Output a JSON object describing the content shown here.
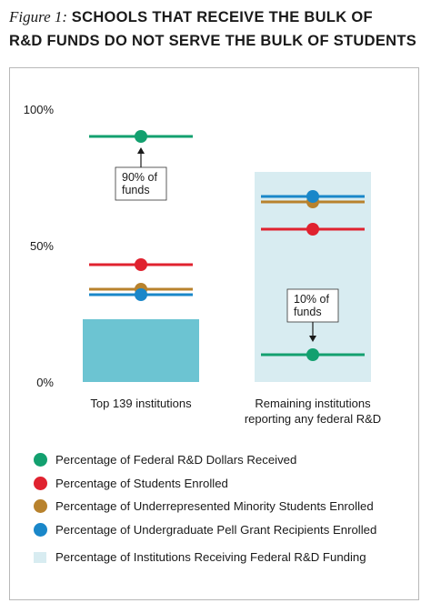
{
  "figure": {
    "label": "Figure 1:",
    "title_line1": "SCHOOLS THAT RECEIVE THE BULK OF",
    "title_line2": "R&D FUNDS DO NOT SERVE THE BULK OF STUDENTS"
  },
  "colors": {
    "green": "#13a06f",
    "red": "#e0222f",
    "gold": "#b8822d",
    "blue": "#1a87c9",
    "bar_fill": "#6cc4d2",
    "bar_light": "#d8ecf1",
    "axis_text": "#1a1a1a"
  },
  "chart_data": {
    "type": "dot-and-bar",
    "ylim": [
      0,
      100
    ],
    "ytick_labels": [
      "100%",
      "50%",
      "0%"
    ],
    "yticks": [
      100,
      50,
      0
    ],
    "categories": [
      "Top 139 institutions",
      "Remaining institutions reporting any federal R&D"
    ],
    "category_labels": [
      [
        "Top 139 institutions"
      ],
      [
        "Remaining institutions",
        "reporting any federal R&D"
      ]
    ],
    "bar_series": {
      "name": "Percentage of Institutions Receiving Federal R&D Funding",
      "values": [
        23,
        77
      ]
    },
    "dot_series": [
      {
        "name": "Percentage of Federal R&D Dollars Received",
        "color_key": "green",
        "values": [
          90,
          10
        ]
      },
      {
        "name": "Percentage of Students Enrolled",
        "color_key": "red",
        "values": [
          43,
          56
        ]
      },
      {
        "name": "Percentage of Underrepresented Minority Students Enrolled",
        "color_key": "gold",
        "values": [
          34,
          66
        ]
      },
      {
        "name": "Percentage of Undergraduate Pell Grant Recipients Enrolled",
        "color_key": "blue",
        "values": [
          32,
          68
        ]
      }
    ],
    "annotations": [
      {
        "category_index": 0,
        "lines": [
          "90% of",
          "funds"
        ],
        "arrow": "up"
      },
      {
        "category_index": 1,
        "lines": [
          "10% of",
          "funds"
        ],
        "arrow": "down"
      }
    ]
  },
  "legend": {
    "items": [
      {
        "label": "Percentage of Federal R&D Dollars Received",
        "color_key": "green",
        "kind": "dot"
      },
      {
        "label": "Percentage of Students Enrolled",
        "color_key": "red",
        "kind": "dot"
      },
      {
        "label": "Percentage of Underrepresented Minority Students Enrolled",
        "color_key": "gold",
        "kind": "dot"
      },
      {
        "label": "Percentage of Undergraduate Pell Grant Recipients Enrolled",
        "color_key": "blue",
        "kind": "dot"
      },
      {
        "label": "Percentage of Institutions Receiving Federal R&D Funding",
        "color_key": "bar_light",
        "kind": "square"
      }
    ]
  }
}
